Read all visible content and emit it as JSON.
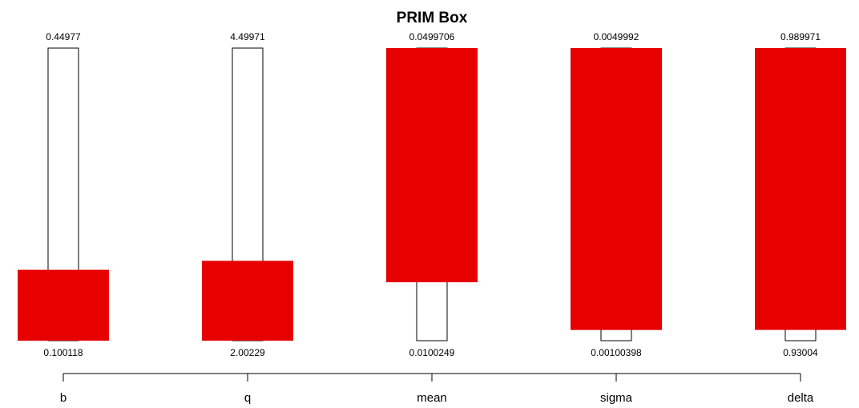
{
  "chart_data": {
    "type": "bar",
    "title": "PRIM Box",
    "categories": [
      "b",
      "q",
      "mean",
      "sigma",
      "delta"
    ],
    "box_color": "#e60000",
    "outline_color": "#000000",
    "series": [
      {
        "variable": "b",
        "range_min_label": "0.100118",
        "range_max_label": "0.44977",
        "range_min": 0.100118,
        "range_max": 0.44977,
        "box_min": 0.100118,
        "box_max": 0.1848
      },
      {
        "variable": "q",
        "range_min_label": "2.00229",
        "range_max_label": "4.49971",
        "range_min": 2.00229,
        "range_max": 4.49971,
        "box_min": 2.00229,
        "box_max": 2.6838
      },
      {
        "variable": "mean",
        "range_min_label": "0.0100249",
        "range_max_label": "0.0499706",
        "range_min": 0.0100249,
        "range_max": 0.0499706,
        "box_min": 0.018,
        "box_max": 0.0499706
      },
      {
        "variable": "sigma",
        "range_min_label": "0.00100398",
        "range_max_label": "0.0049992",
        "range_min": 0.00100398,
        "range_max": 0.0049992,
        "box_min": 0.00115,
        "box_max": 0.0049992
      },
      {
        "variable": "delta",
        "range_min_label": "0.93004",
        "range_max_label": "0.989971",
        "range_min": 0.93004,
        "range_max": 0.989971,
        "box_min": 0.93224,
        "box_max": 0.989971
      }
    ]
  }
}
